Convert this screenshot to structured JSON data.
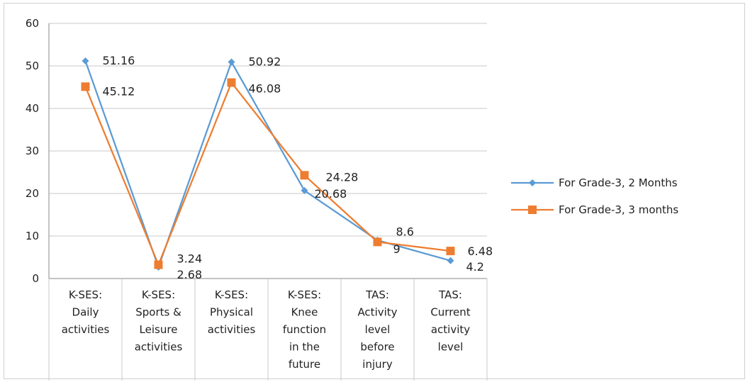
{
  "chart_data": {
    "type": "line",
    "categories": [
      [
        "K-SES:",
        "Daily",
        "activities"
      ],
      [
        "K-SES:",
        "Sports &",
        "Leisure",
        "activities"
      ],
      [
        "K-SES:",
        "Physical",
        "activities"
      ],
      [
        "K-SES:",
        "Knee",
        "function",
        "in the",
        "future"
      ],
      [
        "TAS:",
        "Activity",
        "level",
        "before",
        "injury"
      ],
      [
        "TAS:",
        "Current",
        "activity",
        "level"
      ]
    ],
    "series": [
      {
        "name": "For Grade-3, 2 Months",
        "values": [
          51.16,
          2.68,
          50.92,
          20.68,
          9,
          4.2
        ],
        "labels": [
          "51.16",
          "2.68",
          "50.92",
          "20.68",
          "9",
          "4.2"
        ],
        "color": "#5B9BD5",
        "marker": "diamond"
      },
      {
        "name": "For Grade-3, 3 months",
        "values": [
          45.12,
          3.24,
          46.08,
          24.28,
          8.6,
          6.48
        ],
        "labels": [
          "45.12",
          "3.24",
          "46.08",
          "24.28",
          "8.6",
          "6.48"
        ],
        "color": "#ED7D31",
        "marker": "square"
      }
    ],
    "yticks": [
      "0",
      "10",
      "20",
      "30",
      "40",
      "50",
      "60"
    ],
    "ylim": [
      0,
      60
    ],
    "grid": true,
    "legend_position": "right",
    "title": "",
    "xlabel": "",
    "ylabel": ""
  }
}
